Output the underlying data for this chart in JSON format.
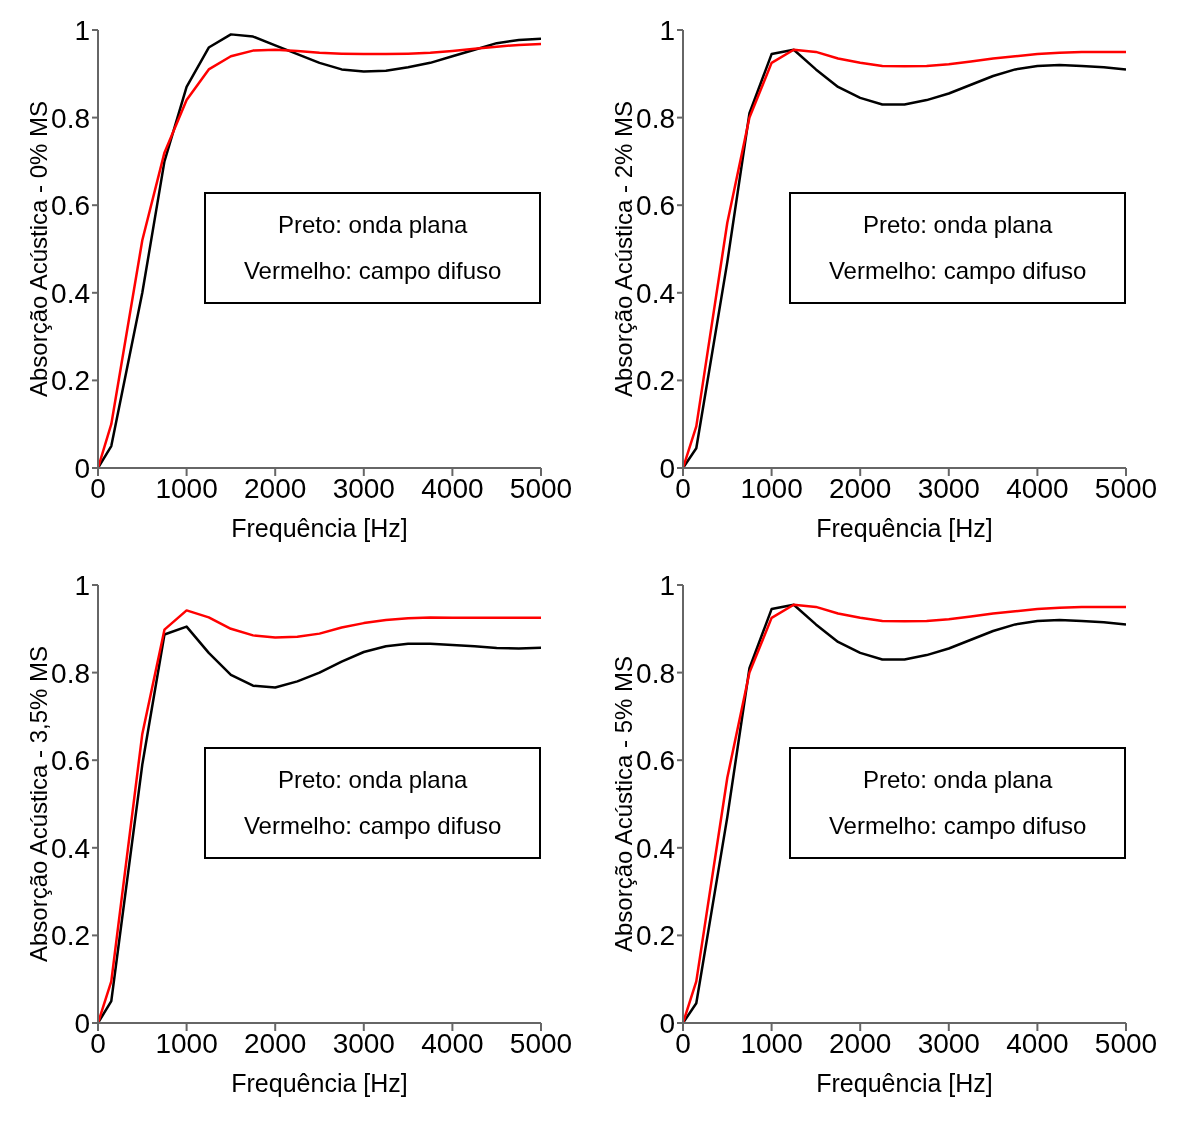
{
  "chart_data": [
    {
      "type": "line",
      "xlabel": "Frequência [Hz]",
      "ylabel": "Absorção Acústica - 0% MS",
      "xlim": [
        0,
        5000
      ],
      "xticks": [
        0,
        1000,
        2000,
        3000,
        4000,
        5000
      ],
      "ylim": [
        0,
        1
      ],
      "yticks": [
        0,
        0.2,
        0.4,
        0.6,
        0.8,
        1
      ],
      "grid": false,
      "x": [
        0,
        150,
        500,
        750,
        1000,
        1250,
        1500,
        1750,
        2000,
        2250,
        2500,
        2750,
        3000,
        3250,
        3500,
        3750,
        4000,
        4250,
        4500,
        4750,
        5000
      ],
      "series": [
        {
          "color": "#000000",
          "values": [
            0,
            0.05,
            0.4,
            0.7,
            0.87,
            0.96,
            0.99,
            0.985,
            0.965,
            0.945,
            0.925,
            0.91,
            0.905,
            0.907,
            0.915,
            0.925,
            0.94,
            0.955,
            0.97,
            0.977,
            0.98
          ]
        },
        {
          "color": "#ff0000",
          "values": [
            0,
            0.1,
            0.52,
            0.72,
            0.84,
            0.91,
            0.94,
            0.953,
            0.955,
            0.952,
            0.948,
            0.946,
            0.945,
            0.945,
            0.946,
            0.948,
            0.952,
            0.957,
            0.962,
            0.966,
            0.968
          ]
        }
      ],
      "annotations": [
        "Preto: onda plana",
        "Vermelho: campo difuso"
      ]
    },
    {
      "type": "line",
      "xlabel": "Frequência [Hz]",
      "ylabel": "Absorção Acústica - 2% MS",
      "xlim": [
        0,
        5000
      ],
      "xticks": [
        0,
        1000,
        2000,
        3000,
        4000,
        5000
      ],
      "ylim": [
        0,
        1
      ],
      "yticks": [
        0,
        0.2,
        0.4,
        0.6,
        0.8,
        1
      ],
      "grid": false,
      "x": [
        0,
        150,
        500,
        750,
        1000,
        1250,
        1500,
        1750,
        2000,
        2250,
        2500,
        2750,
        3000,
        3250,
        3500,
        3750,
        4000,
        4250,
        4500,
        4750,
        5000
      ],
      "series": [
        {
          "color": "#000000",
          "values": [
            0,
            0.045,
            0.47,
            0.81,
            0.945,
            0.955,
            0.91,
            0.87,
            0.845,
            0.83,
            0.83,
            0.84,
            0.855,
            0.875,
            0.895,
            0.91,
            0.918,
            0.92,
            0.918,
            0.915,
            0.91
          ]
        },
        {
          "color": "#ff0000",
          "values": [
            0,
            0.095,
            0.56,
            0.8,
            0.925,
            0.955,
            0.95,
            0.935,
            0.925,
            0.918,
            0.917,
            0.918,
            0.922,
            0.928,
            0.935,
            0.94,
            0.945,
            0.948,
            0.95,
            0.95,
            0.95
          ]
        }
      ],
      "annotations": [
        "Preto: onda plana",
        "Vermelho: campo difuso"
      ]
    },
    {
      "type": "line",
      "xlabel": "Frequência [Hz]",
      "ylabel": "Absorção Acústica - 3,5% MS",
      "xlim": [
        0,
        5000
      ],
      "xticks": [
        0,
        1000,
        2000,
        3000,
        4000,
        5000
      ],
      "ylim": [
        0,
        1
      ],
      "yticks": [
        0,
        0.2,
        0.4,
        0.6,
        0.8,
        1
      ],
      "grid": false,
      "x": [
        0,
        150,
        500,
        750,
        1000,
        1250,
        1500,
        1750,
        2000,
        2250,
        2500,
        2750,
        3000,
        3250,
        3500,
        3750,
        4000,
        4250,
        4500,
        4750,
        5000
      ],
      "series": [
        {
          "color": "#000000",
          "values": [
            0,
            0.05,
            0.59,
            0.887,
            0.905,
            0.845,
            0.795,
            0.77,
            0.766,
            0.78,
            0.8,
            0.825,
            0.847,
            0.86,
            0.866,
            0.866,
            0.863,
            0.86,
            0.856,
            0.855,
            0.857
          ]
        },
        {
          "color": "#ff0000",
          "values": [
            0,
            0.095,
            0.66,
            0.898,
            0.942,
            0.926,
            0.9,
            0.885,
            0.88,
            0.882,
            0.889,
            0.903,
            0.913,
            0.92,
            0.924,
            0.926,
            0.925,
            0.925,
            0.925,
            0.925,
            0.925
          ]
        }
      ],
      "annotations": [
        "Preto: onda plana",
        "Vermelho: campo difuso"
      ]
    },
    {
      "type": "line",
      "xlabel": "Frequência [Hz]",
      "ylabel": "Absorção Acústica - 5% MS",
      "xlim": [
        0,
        5000
      ],
      "xticks": [
        0,
        1000,
        2000,
        3000,
        4000,
        5000
      ],
      "ylim": [
        0,
        1
      ],
      "yticks": [
        0,
        0.2,
        0.4,
        0.6,
        0.8,
        1
      ],
      "grid": false,
      "x": [
        0,
        150,
        500,
        750,
        1000,
        1250,
        1500,
        1750,
        2000,
        2250,
        2500,
        2750,
        3000,
        3250,
        3500,
        3750,
        4000,
        4250,
        4500,
        4750,
        5000
      ],
      "series": [
        {
          "color": "#000000",
          "values": [
            0,
            0.045,
            0.47,
            0.81,
            0.945,
            0.955,
            0.91,
            0.87,
            0.845,
            0.83,
            0.83,
            0.84,
            0.855,
            0.875,
            0.895,
            0.91,
            0.918,
            0.92,
            0.918,
            0.915,
            0.91
          ]
        },
        {
          "color": "#ff0000",
          "values": [
            0,
            0.095,
            0.56,
            0.8,
            0.925,
            0.955,
            0.95,
            0.935,
            0.925,
            0.918,
            0.917,
            0.918,
            0.922,
            0.928,
            0.935,
            0.94,
            0.945,
            0.948,
            0.95,
            0.95,
            0.95
          ]
        }
      ],
      "annotations": [
        "Preto: onda plana",
        "Vermelho: campo difuso"
      ]
    }
  ]
}
